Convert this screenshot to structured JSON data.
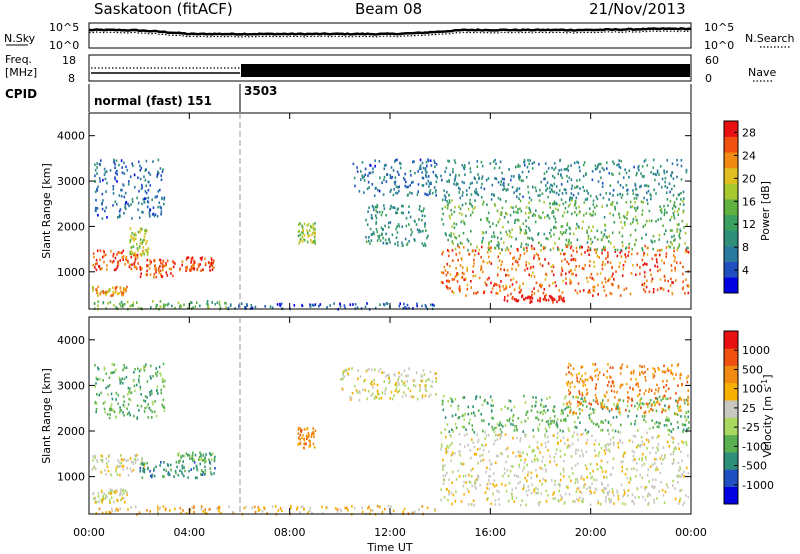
{
  "header": {
    "title": "Saskatoon (fitACF)",
    "beam": "Beam 08",
    "date": "21/Nov/2013"
  },
  "strip_panels": {
    "noise": {
      "left_label": "N.Sky",
      "right_label": "N.Search",
      "left_ticks": [
        "10^5",
        "10^0"
      ],
      "right_ticks": [
        "10^5",
        "10^0"
      ],
      "sky_log_level_by_hour": [
        4.0,
        4.0,
        3.9,
        3.5,
        3.0,
        3.0,
        3.0,
        3.0,
        3.0,
        3.0,
        3.0,
        3.0,
        3.0,
        3.2,
        3.6,
        4.0,
        4.0,
        4.0,
        4.0,
        4.0,
        4.0,
        4.1,
        4.2,
        4.3,
        4.3
      ]
    },
    "freq": {
      "left_label_top": "Freq.",
      "left_label_bottom": "[MHz]",
      "right_label": "Nave",
      "left_ticks": [
        "18",
        "8"
      ],
      "right_ticks": [
        "60",
        "0"
      ]
    },
    "cpid": {
      "label": "CPID",
      "segments": [
        {
          "label": "normal (fast) 151",
          "start_hour": 0,
          "end_hour": 6
        },
        {
          "label": "3503",
          "start_hour": 6,
          "end_hour": 24
        }
      ]
    }
  },
  "chart_data": [
    {
      "type": "heatmap",
      "parameter": "Power",
      "ylabel": "Slant Range [km]",
      "xlim_hours": [
        0,
        24
      ],
      "ylim": [
        180,
        4500
      ],
      "yticks": [
        1000,
        2000,
        3000,
        4000
      ],
      "colorbar": {
        "label": "Power [dB]",
        "ticks": [
          "28",
          "24",
          "20",
          "16",
          "12",
          "8",
          "4"
        ],
        "range": [
          0,
          30
        ],
        "colors": [
          "#0000e0",
          "#1f4fc0",
          "#2a7aa0",
          "#2e8f7a",
          "#3aa060",
          "#60b040",
          "#a8c830",
          "#e0c020",
          "#f08a10",
          "#f05010",
          "#e81010"
        ]
      },
      "regions": [
        {
          "h0": 0.1,
          "h1": 2.2,
          "r0": 1050,
          "r1": 1500,
          "level": 26
        },
        {
          "h0": 0.1,
          "h1": 1.5,
          "r0": 500,
          "r1": 700,
          "level": 22
        },
        {
          "h0": 1.6,
          "h1": 2.4,
          "r0": 1400,
          "r1": 2000,
          "level": 18
        },
        {
          "h0": 2.0,
          "h1": 3.4,
          "r0": 900,
          "r1": 1300,
          "level": 26
        },
        {
          "h0": 3.5,
          "h1": 5.0,
          "r0": 1050,
          "r1": 1350,
          "level": 27
        },
        {
          "h0": 0.2,
          "h1": 3.0,
          "r0": 2200,
          "r1": 3500,
          "level": 6
        },
        {
          "h0": 0.1,
          "h1": 5.5,
          "r0": 200,
          "r1": 380,
          "level": 14
        },
        {
          "h0": 5.5,
          "h1": 13.8,
          "r0": 200,
          "r1": 330,
          "level": 5
        },
        {
          "h0": 8.3,
          "h1": 9.0,
          "r0": 1650,
          "r1": 2100,
          "level": 17
        },
        {
          "h0": 10.5,
          "h1": 13.9,
          "r0": 2700,
          "r1": 3500,
          "level": 6
        },
        {
          "h0": 11.0,
          "h1": 13.5,
          "r0": 1600,
          "r1": 2500,
          "level": 10
        },
        {
          "h0": 14.0,
          "h1": 23.9,
          "r0": 500,
          "r1": 1600,
          "level": 25
        },
        {
          "h0": 14.0,
          "h1": 23.9,
          "r0": 1500,
          "r1": 2600,
          "level": 14
        },
        {
          "h0": 14.0,
          "h1": 23.9,
          "r0": 2600,
          "r1": 3500,
          "level": 9
        },
        {
          "h0": 16.5,
          "h1": 19.0,
          "r0": 350,
          "r1": 500,
          "level": 29
        }
      ]
    },
    {
      "type": "heatmap",
      "parameter": "Velocity",
      "ylabel": "Slant Range [km]",
      "xlabel": "Time UT",
      "xlim_hours": [
        0,
        24
      ],
      "xticks": [
        "00:00",
        "04:00",
        "08:00",
        "12:00",
        "16:00",
        "20:00",
        "00:00"
      ],
      "ylim": [
        180,
        4500
      ],
      "yticks": [
        1000,
        2000,
        3000,
        4000
      ],
      "colorbar": {
        "label": "Velocity [m s^-1]",
        "ticks": [
          "1000",
          "500",
          "100",
          "25",
          "-25",
          "-100",
          "-500",
          "-1000"
        ],
        "colors": [
          "#0000e0",
          "#1f4fc0",
          "#2e8f7a",
          "#5ab050",
          "#a8d860",
          "#c8c8c0",
          "#f5b000",
          "#f08a10",
          "#f05010",
          "#e81010"
        ]
      },
      "regions": [
        {
          "h0": 0.1,
          "h1": 2.2,
          "r0": 1050,
          "r1": 1500,
          "level": 5
        },
        {
          "h0": 0.1,
          "h1": 1.5,
          "r0": 450,
          "r1": 750,
          "level": 5
        },
        {
          "h0": 2.0,
          "h1": 5.0,
          "r0": 1000,
          "r1": 1350,
          "level": 2
        },
        {
          "h0": 3.5,
          "h1": 5.0,
          "r0": 1350,
          "r1": 1550,
          "level": 3
        },
        {
          "h0": 0.2,
          "h1": 3.0,
          "r0": 2300,
          "r1": 3500,
          "level": 3
        },
        {
          "h0": 0.2,
          "h1": 13.9,
          "r0": 200,
          "r1": 380,
          "level": 6
        },
        {
          "h0": 8.3,
          "h1": 9.0,
          "r0": 1650,
          "r1": 2100,
          "level": 7
        },
        {
          "h0": 10.0,
          "h1": 13.9,
          "r0": 2700,
          "r1": 3400,
          "level": 5
        },
        {
          "h0": 14.0,
          "h1": 23.9,
          "r0": 400,
          "r1": 2000,
          "level": 5
        },
        {
          "h0": 14.0,
          "h1": 23.9,
          "r0": 2000,
          "r1": 2800,
          "level": 3
        },
        {
          "h0": 19.0,
          "h1": 23.9,
          "r0": 2400,
          "r1": 3500,
          "level": 7
        }
      ]
    }
  ]
}
